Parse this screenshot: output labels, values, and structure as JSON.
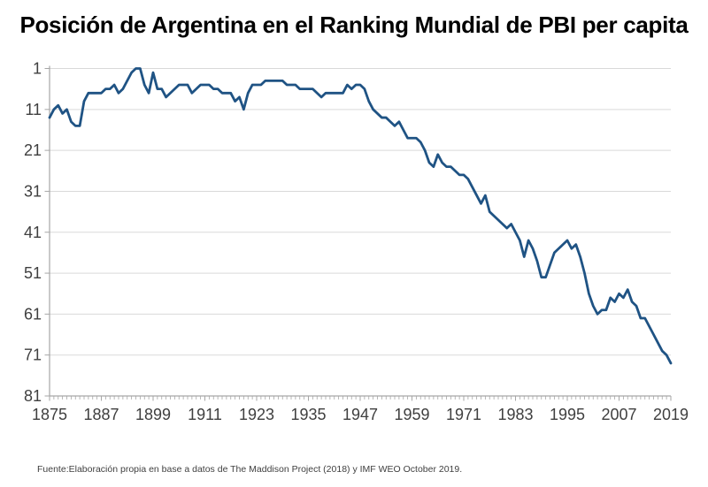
{
  "title": "Posición de Argentina en el Ranking Mundial de PBI per capita",
  "footer": "Fuente:Elaboración propia en base a datos de The Maddison Project (2018) y IMF WEO October 2019.",
  "colors": {
    "line": "#1F5384",
    "gridline": "#D9D9D9",
    "axis": "#A6A6A6",
    "tick_label": "#3F3F3F",
    "title_text": "#000000",
    "background": "#FFFFFF"
  },
  "chart_data": {
    "type": "line",
    "title": "Posición de Argentina en el Ranking Mundial de PBI per capita",
    "xlabel": "",
    "ylabel": "",
    "x_start_year": 1875,
    "x_step_years": 1,
    "xlim": [
      1875,
      2019
    ],
    "ylim": [
      1,
      81
    ],
    "y_axis_inverted": true,
    "grid": "horizontal",
    "legend_position": "none",
    "x_tick_labels": [
      1875,
      1887,
      1899,
      1911,
      1923,
      1935,
      1947,
      1959,
      1971,
      1983,
      1995,
      2007,
      2019
    ],
    "y_tick_labels": [
      1,
      11,
      21,
      31,
      41,
      51,
      61,
      71,
      81
    ],
    "values": [
      13,
      11,
      10,
      12,
      11,
      14,
      15,
      15,
      9,
      7,
      7,
      7,
      7,
      6,
      6,
      5,
      7,
      6,
      4,
      2,
      1,
      1,
      5,
      7,
      2,
      6,
      6,
      8,
      7,
      6,
      5,
      5,
      5,
      7,
      6,
      5,
      5,
      5,
      6,
      6,
      7,
      7,
      7,
      9,
      8,
      11,
      7,
      5,
      5,
      5,
      4,
      4,
      4,
      4,
      4,
      5,
      5,
      5,
      6,
      6,
      6,
      6,
      7,
      8,
      7,
      7,
      7,
      7,
      7,
      5,
      6,
      5,
      5,
      6,
      9,
      11,
      12,
      13,
      13,
      14,
      15,
      14,
      16,
      18,
      18,
      18,
      19,
      21,
      24,
      25,
      22,
      24,
      25,
      25,
      26,
      27,
      27,
      28,
      30,
      32,
      34,
      32,
      36,
      37,
      38,
      39,
      40,
      39,
      41,
      43,
      47,
      43,
      45,
      48,
      52,
      52,
      49,
      46,
      45,
      44,
      43,
      45,
      44,
      47,
      51,
      56,
      59,
      61,
      60,
      60,
      57,
      58,
      56,
      57,
      55,
      58,
      59,
      62,
      62,
      64,
      66,
      68,
      70,
      71,
      73
    ]
  }
}
